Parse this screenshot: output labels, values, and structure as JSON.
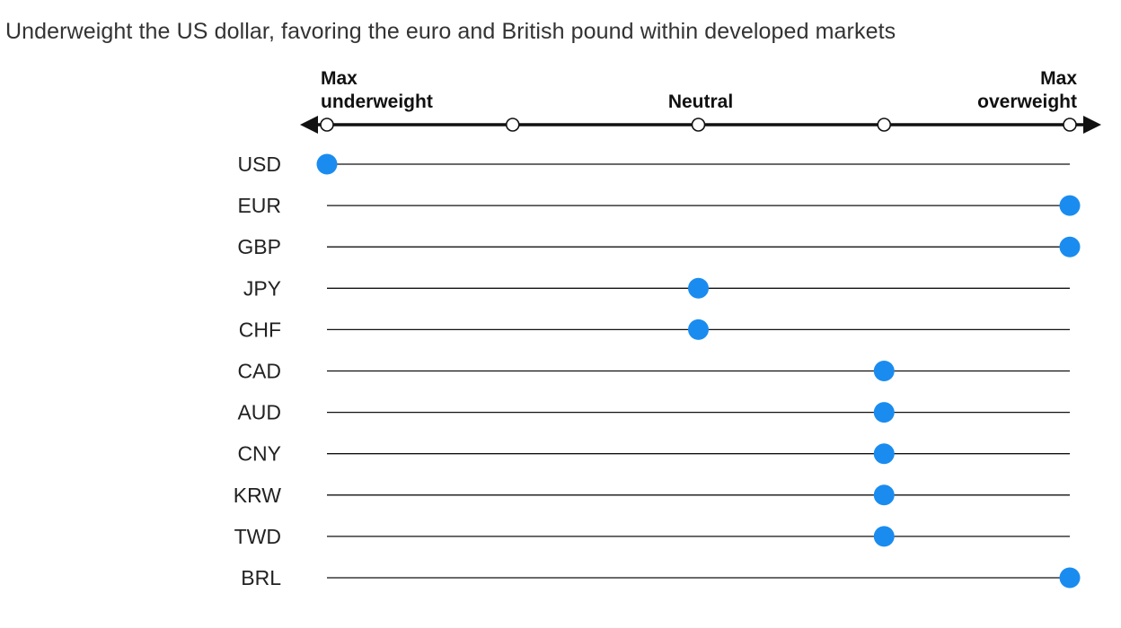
{
  "title": "Underweight the US dollar, favoring the euro and British pound within developed markets",
  "scale": {
    "left_label_1": "Max",
    "left_label_2": "underweight",
    "center_label": "Neutral",
    "right_label_1": "Max",
    "right_label_2": "overweight"
  },
  "colors": {
    "dot": "#1a8cf0",
    "line": "#111111"
  },
  "chart_data": {
    "type": "scatter",
    "scale_min": -2,
    "scale_max": 2,
    "categories": [
      "USD",
      "EUR",
      "GBP",
      "JPY",
      "CHF",
      "CAD",
      "AUD",
      "CNY",
      "KRW",
      "TWD",
      "BRL"
    ],
    "values": [
      -2,
      2,
      2,
      0,
      0,
      1,
      1,
      1,
      1,
      1,
      2
    ]
  }
}
